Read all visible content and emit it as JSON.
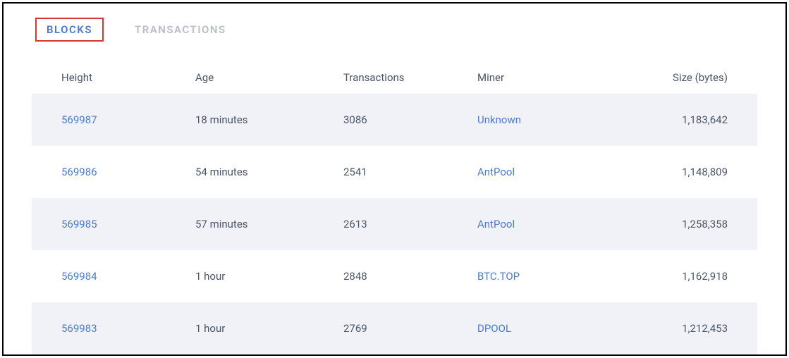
{
  "tabs": {
    "blocks": "BLOCKS",
    "transactions": "TRANSACTIONS"
  },
  "table": {
    "columns": {
      "height": "Height",
      "age": "Age",
      "transactions": "Transactions",
      "miner": "Miner",
      "size": "Size (bytes)"
    },
    "rows": [
      {
        "height": "569987",
        "age": "18 minutes",
        "transactions": "3086",
        "miner": "Unknown",
        "size": "1,183,642"
      },
      {
        "height": "569986",
        "age": "54 minutes",
        "transactions": "2541",
        "miner": "AntPool",
        "size": "1,148,809"
      },
      {
        "height": "569985",
        "age": "57 minutes",
        "transactions": "2613",
        "miner": "AntPool",
        "size": "1,258,358"
      },
      {
        "height": "569984",
        "age": "1 hour",
        "transactions": "2848",
        "miner": "BTC.TOP",
        "size": "1,162,918"
      },
      {
        "height": "569983",
        "age": "1 hour",
        "transactions": "2769",
        "miner": "DPOOL",
        "size": "1,212,453"
      }
    ]
  },
  "colors": {
    "link": "#4a7bd0",
    "text": "#4a5568",
    "inactive_tab": "#b8bec7",
    "stripe_bg": "#f1f2f7",
    "highlight_border": "#d93535"
  }
}
